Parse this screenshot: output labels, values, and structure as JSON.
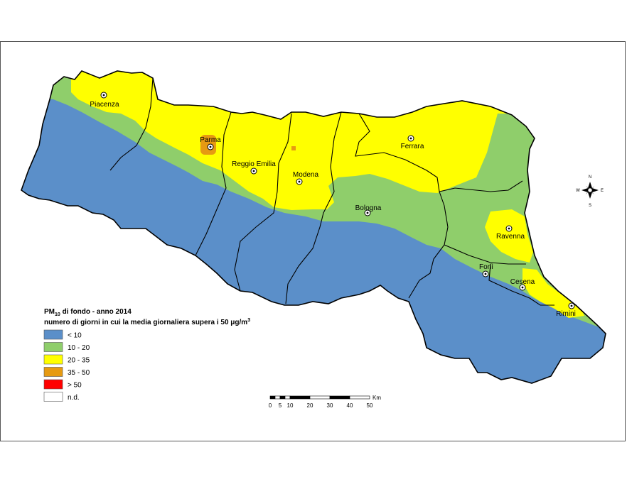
{
  "map": {
    "title_prefix": "PM",
    "title_sub": "10",
    "title_suffix": " di fondo - anno 2014",
    "subtitle": "numero di giorni in cui la media giornaliera supera i 50 μg/m",
    "subtitle_sup": "3"
  },
  "legend": [
    {
      "label": "< 10",
      "color": "#5b8fc9"
    },
    {
      "label": "10 - 20",
      "color": "#8fce6b"
    },
    {
      "label": "20 - 35",
      "color": "#ffff00"
    },
    {
      "label": "35 - 50",
      "color": "#e69a12"
    },
    {
      "label": "> 50",
      "color": "#ff0000"
    },
    {
      "label": "n.d.",
      "color": "#ffffff"
    }
  ],
  "cities": [
    {
      "name": "Piacenza"
    },
    {
      "name": "Parma"
    },
    {
      "name": "Reggio Emilia"
    },
    {
      "name": "Modena"
    },
    {
      "name": "Ferrara"
    },
    {
      "name": "Bologna"
    },
    {
      "name": "Ravenna"
    },
    {
      "name": "Forlì"
    },
    {
      "name": "Cesena"
    },
    {
      "name": "Rimini"
    }
  ],
  "scale_bar": {
    "unit": "Km",
    "ticks": [
      "0",
      "5",
      "10",
      "20",
      "30",
      "40",
      "50"
    ]
  },
  "compass": {
    "n": "N",
    "s": "S",
    "e": "E",
    "w": "W"
  }
}
